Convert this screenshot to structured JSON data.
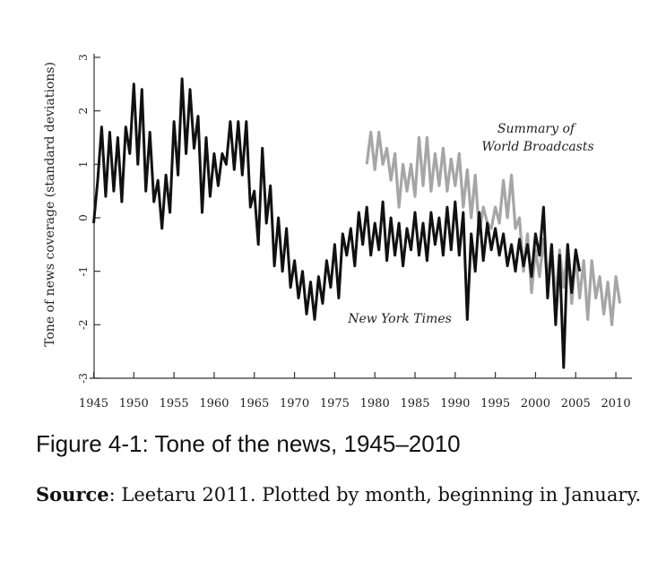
{
  "chart_data": {
    "type": "line",
    "y_label": "Tone of news coverage (standard deviations)",
    "xlim": [
      1944.5,
      2012
    ],
    "ylim": [
      -3,
      3
    ],
    "xticks": [
      1945,
      1950,
      1955,
      1960,
      1965,
      1970,
      1975,
      1980,
      1985,
      1990,
      1995,
      2000,
      2005,
      2010
    ],
    "yticks": [
      -3,
      -2,
      -1,
      0,
      1,
      2,
      3
    ],
    "annotations": [
      "Summary of",
      "World Broadcasts",
      "New York Times"
    ],
    "series": [
      {
        "name": "New York Times",
        "color": "#111111",
        "x": [
          1945,
          1945.5,
          1946,
          1946.5,
          1947,
          1947.5,
          1948,
          1948.5,
          1949,
          1949.5,
          1950,
          1950.5,
          1951,
          1951.5,
          1952,
          1952.5,
          1953,
          1953.5,
          1954,
          1954.5,
          1955,
          1955.5,
          1956,
          1956.5,
          1957,
          1957.5,
          1958,
          1958.5,
          1959,
          1959.5,
          1960,
          1960.5,
          1961,
          1961.5,
          1962,
          1962.5,
          1963,
          1963.5,
          1964,
          1964.5,
          1965,
          1965.5,
          1966,
          1966.5,
          1967,
          1967.5,
          1968,
          1968.5,
          1969,
          1969.5,
          1970,
          1970.5,
          1971,
          1971.5,
          1972,
          1972.5,
          1973,
          1973.5,
          1974,
          1974.5,
          1975,
          1975.5,
          1976,
          1976.5,
          1977,
          1977.5,
          1978,
          1978.5,
          1979,
          1979.5,
          1980,
          1980.5,
          1981,
          1981.5,
          1982,
          1982.5,
          1983,
          1983.5,
          1984,
          1984.5,
          1985,
          1985.5,
          1986,
          1986.5,
          1987,
          1987.5,
          1988,
          1988.5,
          1989,
          1989.5,
          1990,
          1990.5,
          1991,
          1991.5,
          1992,
          1992.5,
          1993,
          1993.5,
          1994,
          1994.5,
          1995,
          1995.5,
          1996,
          1996.5,
          1997,
          1997.5,
          1998,
          1998.5,
          1999,
          1999.5,
          2000,
          2000.5,
          2001,
          2001.5,
          2002,
          2002.5,
          2003,
          2003.5,
          2004,
          2004.5,
          2005,
          2005.5
        ],
        "values": [
          -0.1,
          0.7,
          1.7,
          0.4,
          1.6,
          0.5,
          1.5,
          0.3,
          1.7,
          1.2,
          2.5,
          1.0,
          2.4,
          0.5,
          1.6,
          0.3,
          0.7,
          -0.2,
          0.8,
          0.1,
          1.8,
          0.8,
          2.6,
          1.2,
          2.4,
          1.3,
          1.9,
          0.1,
          1.5,
          0.4,
          1.2,
          0.6,
          1.2,
          1.0,
          1.8,
          0.9,
          1.8,
          0.8,
          1.8,
          0.2,
          0.5,
          -0.5,
          1.3,
          -0.1,
          0.6,
          -0.9,
          0.0,
          -1.0,
          -0.2,
          -1.3,
          -0.8,
          -1.5,
          -1.0,
          -1.8,
          -1.2,
          -1.9,
          -1.1,
          -1.6,
          -0.8,
          -1.3,
          -0.5,
          -1.5,
          -0.3,
          -0.7,
          -0.2,
          -0.9,
          0.1,
          -0.5,
          0.2,
          -0.7,
          -0.1,
          -0.6,
          0.3,
          -0.8,
          0.0,
          -0.7,
          -0.1,
          -0.9,
          -0.2,
          -0.6,
          0.1,
          -0.7,
          -0.1,
          -0.8,
          0.1,
          -0.5,
          0.0,
          -0.7,
          0.2,
          -0.6,
          0.3,
          -0.7,
          0.1,
          -1.9,
          -0.3,
          -1.0,
          0.1,
          -0.8,
          -0.1,
          -0.6,
          -0.2,
          -0.7,
          -0.3,
          -0.9,
          -0.5,
          -1.0,
          -0.4,
          -0.9,
          -0.5,
          -1.1,
          -0.3,
          -0.7,
          0.2,
          -1.5,
          -0.5,
          -2.0,
          -0.7,
          -2.8,
          -0.5,
          -1.4,
          -0.6,
          -1.0
        ]
      },
      {
        "name": "Summary of World Broadcasts",
        "color": "#a6a6a6",
        "x": [
          1979,
          1979.5,
          1980,
          1980.5,
          1981,
          1981.5,
          1982,
          1982.5,
          1983,
          1983.5,
          1984,
          1984.5,
          1985,
          1985.5,
          1986,
          1986.5,
          1987,
          1987.5,
          1988,
          1988.5,
          1989,
          1989.5,
          1990,
          1990.5,
          1991,
          1991.5,
          1992,
          1992.5,
          1993,
          1993.5,
          1994,
          1994.5,
          1995,
          1995.5,
          1996,
          1996.5,
          1997,
          1997.5,
          1998,
          1998.5,
          1999,
          1999.5,
          2000,
          2000.5,
          2001,
          2001.5,
          2002,
          2002.5,
          2003,
          2003.5,
          2004,
          2004.5,
          2005,
          2005.5,
          2006,
          2006.5,
          2007,
          2007.5,
          2008,
          2008.5,
          2009,
          2009.5,
          2010,
          2010.5
        ],
        "values": [
          1.0,
          1.6,
          0.9,
          1.6,
          1.0,
          1.3,
          0.7,
          1.2,
          0.2,
          1.0,
          0.5,
          1.0,
          0.4,
          1.5,
          0.6,
          1.5,
          0.5,
          1.2,
          0.6,
          1.3,
          0.5,
          1.1,
          0.6,
          1.2,
          0.2,
          0.9,
          0.0,
          0.8,
          -0.3,
          0.2,
          -0.1,
          -0.2,
          0.2,
          -0.1,
          0.7,
          0.0,
          0.8,
          -0.2,
          0.0,
          -1.0,
          -0.3,
          -1.4,
          -0.6,
          -1.1,
          -0.4,
          -1.2,
          -0.5,
          -1.6,
          -0.6,
          -1.3,
          -0.5,
          -1.6,
          -0.7,
          -1.5,
          -0.8,
          -1.9,
          -0.8,
          -1.5,
          -1.1,
          -1.8,
          -1.2,
          -2.0,
          -1.1,
          -1.6
        ]
      }
    ]
  },
  "caption": "Figure 4-1: Tone of the news, 1945–2010",
  "source_label": "Source",
  "source_text": ": Leetaru 2011. Plotted by month, beginning in January."
}
